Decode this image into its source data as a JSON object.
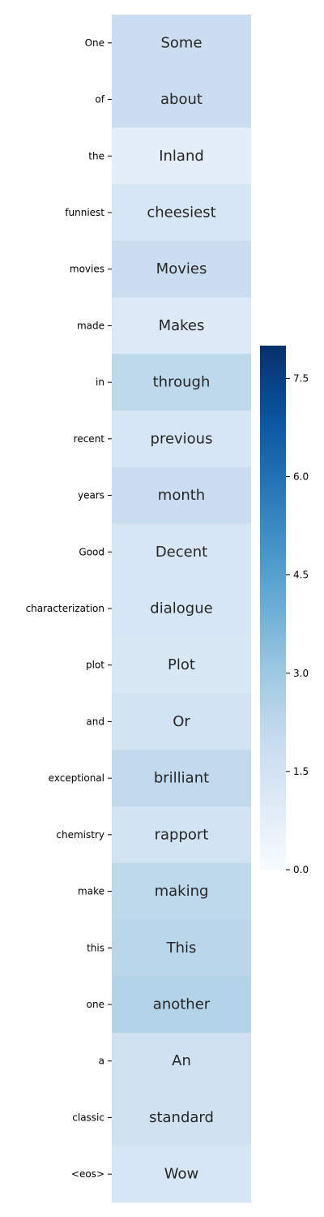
{
  "chart_data": {
    "type": "heatmap",
    "title": "",
    "xlabel": "",
    "ylabel": "",
    "row_labels": [
      "One",
      "of",
      "the",
      "funniest",
      "movies",
      "made",
      "in",
      "recent",
      "years",
      "Good",
      "characterization",
      "plot",
      "and",
      "exceptional",
      "chemistry",
      "make",
      "this",
      "one",
      "a",
      "classic",
      "<eos>"
    ],
    "cell_texts": [
      "Some",
      "about",
      "Inland",
      "cheesiest",
      "Movies",
      "Makes",
      "through",
      "previous",
      "month",
      "Decent",
      "dialogue",
      "Plot",
      "Or",
      "brilliant",
      "rapport",
      "making",
      "This",
      "another",
      "An",
      "standard",
      "Wow"
    ],
    "values": [
      1.8,
      1.8,
      0.8,
      1.3,
      1.8,
      1.1,
      2.2,
      1.3,
      1.8,
      1.3,
      1.3,
      1.2,
      1.5,
      2.1,
      1.5,
      2.2,
      2.3,
      2.5,
      1.6,
      1.6,
      1.3
    ],
    "colorbar": {
      "min": 0.0,
      "max": 8.0,
      "ticks": [
        0.0,
        1.5,
        3.0,
        4.5,
        6.0,
        7.5
      ],
      "tick_labels": [
        "0.0",
        "1.5",
        "3.0",
        "4.5",
        "6.0",
        "7.5"
      ],
      "colormap": "Blues"
    }
  }
}
